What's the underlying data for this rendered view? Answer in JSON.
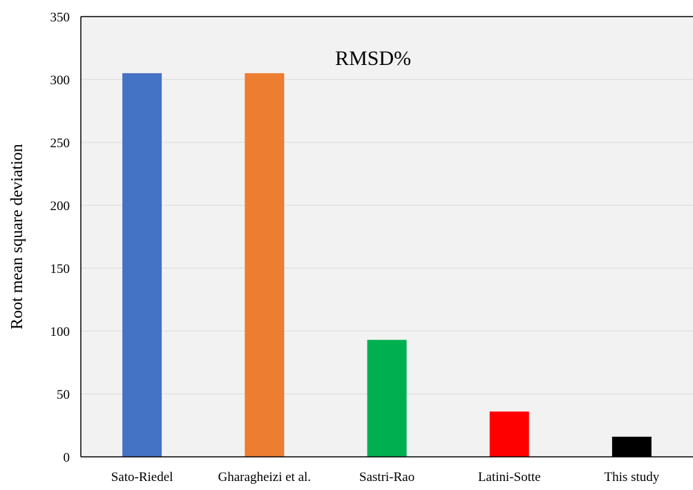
{
  "chart_data": {
    "type": "bar",
    "title": "RMSD%",
    "xlabel": "",
    "ylabel": "Root mean square deviation",
    "ylim": [
      0,
      350
    ],
    "yticks": [
      0,
      50,
      100,
      150,
      200,
      250,
      300,
      350
    ],
    "grid": true,
    "categories": [
      "Sato-Riedel",
      "Gharagheizi et al.",
      "Sastri-Rao",
      "Latini-Sotte",
      "This study"
    ],
    "values": [
      305,
      305,
      93,
      36,
      16
    ],
    "colors": [
      "#4472C4",
      "#ED7D31",
      "#00B050",
      "#FF0000",
      "#000000"
    ],
    "plot_background": "#F2F2F2",
    "gridline_color": "#D9D9D9"
  }
}
